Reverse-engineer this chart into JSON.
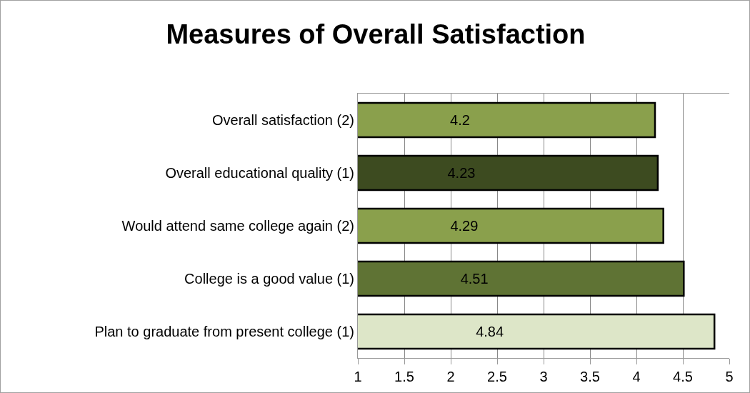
{
  "chart_data": {
    "type": "bar",
    "orientation": "horizontal",
    "title": "Measures of Overall Satisfaction",
    "categories": [
      "Overall satisfaction (2)",
      "Overall educational quality (1)",
      "Would attend same college again (2)",
      "College is a good value (1)",
      "Plan to graduate from present college (1)"
    ],
    "values": [
      4.2,
      4.23,
      4.29,
      4.51,
      4.84
    ],
    "colors": [
      "#8aa04c",
      "#3d4b20",
      "#8aa04c",
      "#5f7334",
      "#dde6c8"
    ],
    "xlim": [
      1,
      5
    ],
    "xticks": [
      1,
      1.5,
      2,
      2.5,
      3,
      3.5,
      4,
      4.5,
      5
    ],
    "grid": "x",
    "data_labels": true
  }
}
